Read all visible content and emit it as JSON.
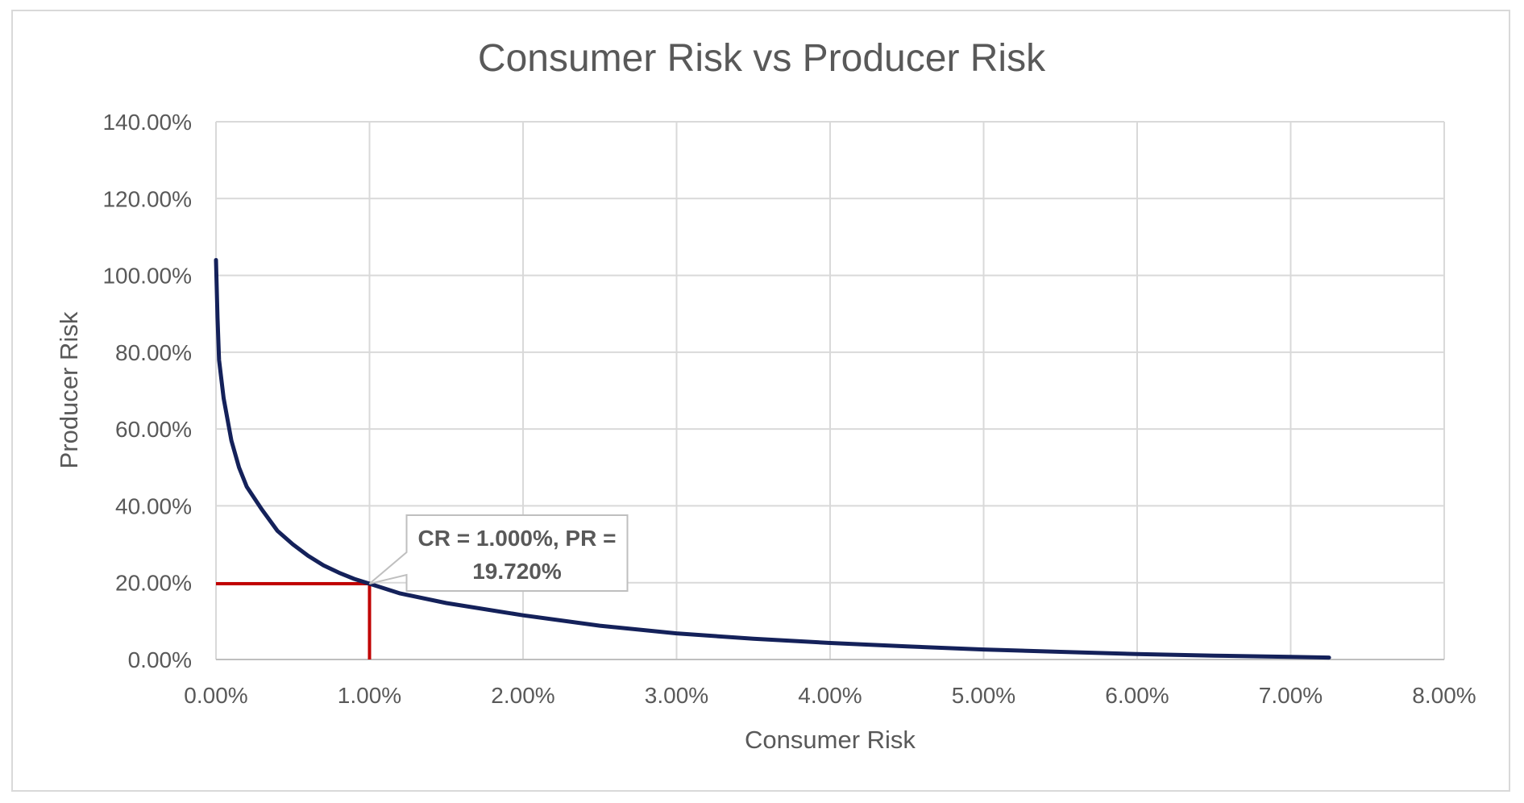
{
  "chart_data": {
    "type": "line",
    "title": "Consumer Risk  vs Producer Risk",
    "xlabel": "Consumer Risk",
    "ylabel": "Producer Risk",
    "xlim": [
      0,
      0.08
    ],
    "ylim": [
      0,
      1.4
    ],
    "x_ticks": [
      "0.00%",
      "1.00%",
      "2.00%",
      "3.00%",
      "4.00%",
      "5.00%",
      "6.00%",
      "7.00%",
      "8.00%"
    ],
    "y_ticks": [
      "0.00%",
      "20.00%",
      "40.00%",
      "60.00%",
      "80.00%",
      "100.00%",
      "120.00%",
      "140.00%"
    ],
    "grid": true,
    "legend": "none",
    "series": [
      {
        "color": "#14215a",
        "x": [
          0.0,
          0.0001,
          0.0002,
          0.0005,
          0.001,
          0.0015,
          0.002,
          0.003,
          0.004,
          0.005,
          0.006,
          0.007,
          0.008,
          0.009,
          0.01,
          0.012,
          0.015,
          0.02,
          0.025,
          0.03,
          0.035,
          0.04,
          0.045,
          0.05,
          0.055,
          0.06,
          0.065,
          0.07,
          0.0725
        ],
        "y": [
          1.04,
          0.89,
          0.78,
          0.68,
          0.57,
          0.5,
          0.45,
          0.39,
          0.335,
          0.3,
          0.27,
          0.245,
          0.226,
          0.21,
          0.1972,
          0.172,
          0.147,
          0.115,
          0.088,
          0.068,
          0.054,
          0.043,
          0.034,
          0.026,
          0.02,
          0.014,
          0.01,
          0.007,
          0.005
        ]
      }
    ],
    "marker_lines": {
      "color": "#c00000",
      "x": 0.01,
      "y": 0.1972
    },
    "annotation": {
      "line1": "CR = 1.000%, PR =",
      "line2": "19.720%",
      "x": 0.01,
      "y": 0.1972
    }
  }
}
